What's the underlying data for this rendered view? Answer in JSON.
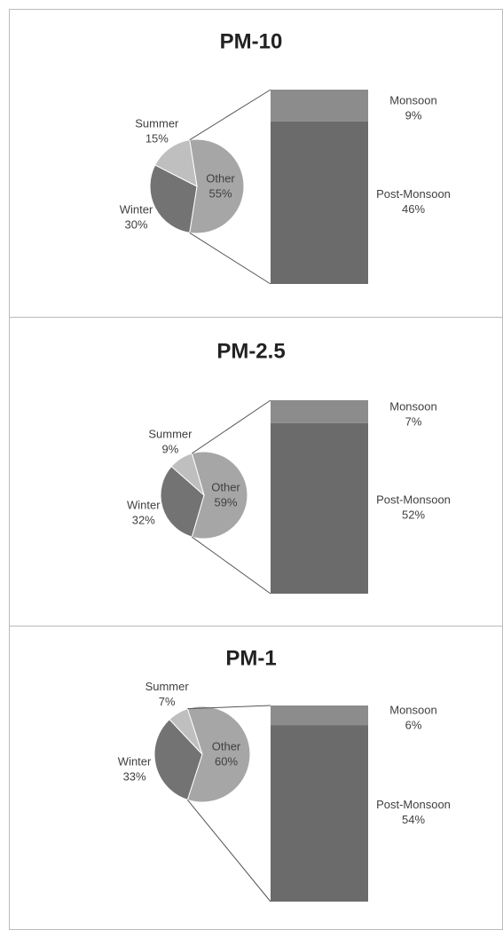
{
  "chart_data": [
    {
      "type": "bar-of-pie",
      "title": "PM-10",
      "categories": [
        "Other",
        "Winter",
        "Summer"
      ],
      "values": [
        55,
        30,
        15
      ],
      "value_labels": [
        "55%",
        "30%",
        "15%"
      ],
      "colors": [
        "#a6a6a6",
        "#737373",
        "#bfbfbf"
      ],
      "bar": {
        "categories": [
          "Monsoon",
          "Post-Monsoon"
        ],
        "values": [
          9,
          46
        ],
        "value_labels": [
          "9%",
          "46%"
        ],
        "colors": [
          "#8c8c8c",
          "#6b6b6b"
        ]
      }
    },
    {
      "type": "bar-of-pie",
      "title": "PM-2.5",
      "categories": [
        "Other",
        "Winter",
        "Summer"
      ],
      "values": [
        59,
        32,
        9
      ],
      "value_labels": [
        "59%",
        "32%",
        "9%"
      ],
      "colors": [
        "#a6a6a6",
        "#737373",
        "#bfbfbf"
      ],
      "bar": {
        "categories": [
          "Monsoon",
          "Post-Monsoon"
        ],
        "values": [
          7,
          52
        ],
        "value_labels": [
          "7%",
          "52%"
        ],
        "colors": [
          "#8c8c8c",
          "#6b6b6b"
        ]
      }
    },
    {
      "type": "bar-of-pie",
      "title": "PM-1",
      "categories": [
        "Other",
        "Winter",
        "Summer"
      ],
      "values": [
        60,
        33,
        7
      ],
      "value_labels": [
        "60%",
        "33%",
        "7%"
      ],
      "colors": [
        "#a6a6a6",
        "#737373",
        "#bfbfbf"
      ],
      "bar": {
        "categories": [
          "Monsoon",
          "Post-Monsoon"
        ],
        "values": [
          6,
          54
        ],
        "value_labels": [
          "6%",
          "54%"
        ],
        "colors": [
          "#8c8c8c",
          "#6b6b6b"
        ]
      }
    }
  ]
}
